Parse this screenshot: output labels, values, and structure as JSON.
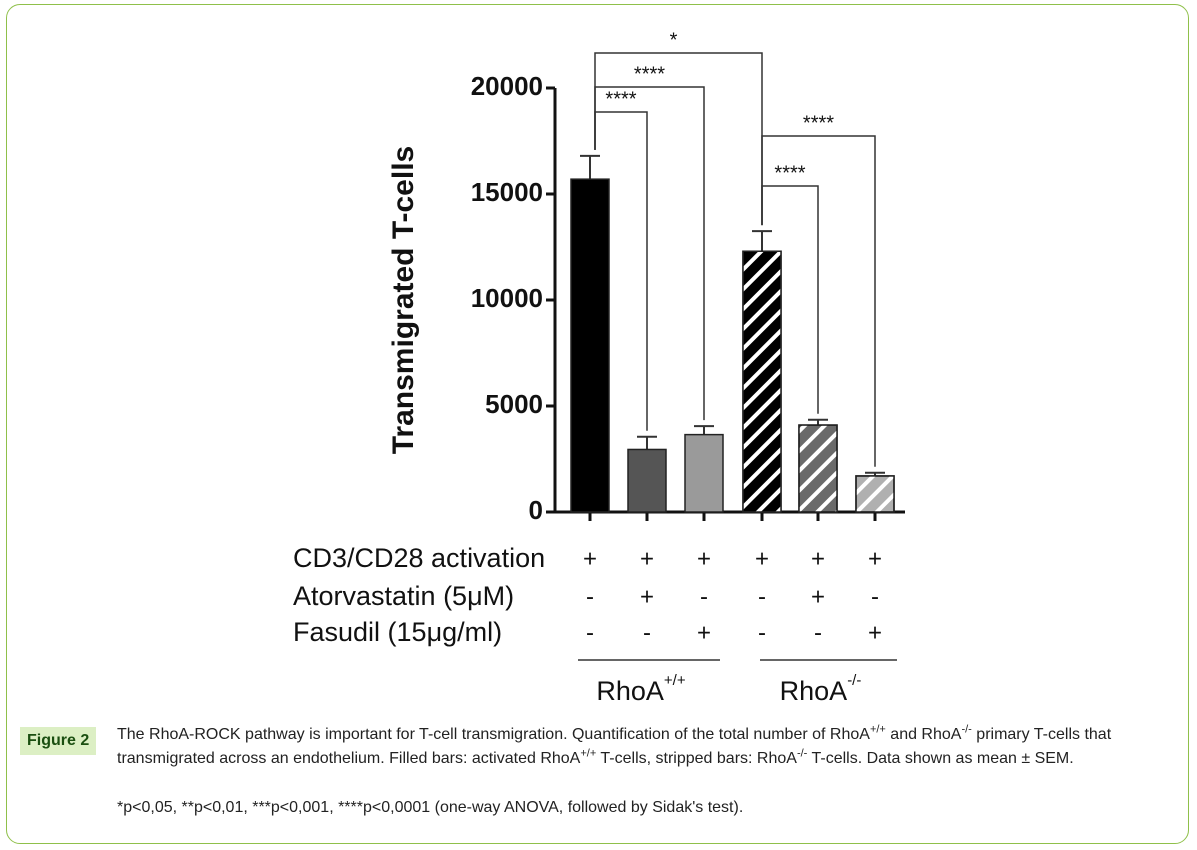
{
  "chart_data": {
    "type": "bar",
    "ylabel": "Transmigrated T-cells",
    "ylim": [
      0,
      20000
    ],
    "yticks": [
      0,
      5000,
      10000,
      15000,
      20000
    ],
    "values": [
      15700,
      2950,
      3650,
      12300,
      4100,
      1700
    ],
    "errors": [
      1100,
      600,
      400,
      950,
      250,
      150
    ],
    "colors": [
      "#000000",
      "#555555",
      "#9a9a9a",
      "#000000",
      "#6a6a6a",
      "#b0b0b0"
    ],
    "hatched": [
      false,
      false,
      false,
      true,
      true,
      true
    ],
    "significance": [
      "*",
      "****",
      "****",
      "****",
      "****"
    ],
    "conditions": [
      {
        "label": "CD3/CD28 activation",
        "values": [
          "+",
          "+",
          "+",
          "+",
          "+",
          "+"
        ]
      },
      {
        "label": "Atorvastatin (5μM)",
        "values": [
          "-",
          "+",
          "-",
          "-",
          "+",
          "-"
        ]
      },
      {
        "label": "Fasudil (15μg/ml)",
        "values": [
          "-",
          "-",
          "+",
          "-",
          "-",
          "+"
        ]
      }
    ],
    "groups": [
      {
        "name": "RhoA",
        "sup": "+/+"
      },
      {
        "name": "RhoA",
        "sup": "-/-"
      }
    ]
  },
  "figure": {
    "label": "Figure 2",
    "caption": [
      "The RhoA-ROCK pathway is important for T-cell transmigration. Quantification of the total number of RhoA",
      "+/+",
      " and RhoA",
      "-/-",
      " primary T-cells that transmigrated across an endothelium. Filled bars: activated RhoA",
      "+/+",
      " T-cells, stripped bars: RhoA",
      "-/-",
      " T-cells. Data shown as mean ± SEM."
    ],
    "footnote": "*p<0,05, **p<0,01, ***p<0,001, ****p<0,0001 (one-way ANOVA, followed by Sidak's test)."
  }
}
